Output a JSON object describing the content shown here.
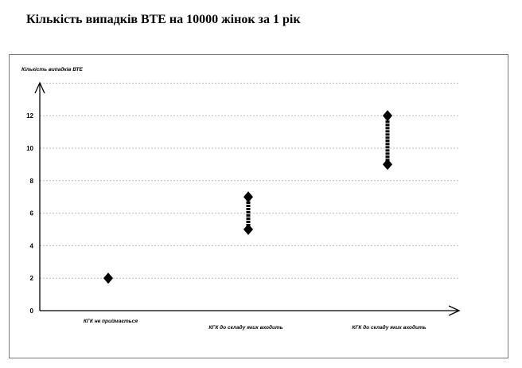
{
  "page_title": "Кількість випадків ВТЕ на 10000 жінок за 1 рік",
  "chart_data": {
    "type": "scatter",
    "title": "Кількість випадків ВТЕ на 10000 жінок за 1 рік",
    "ylabel": "Кількість випадків ВТЕ",
    "xlabel": "",
    "categories": [
      "КГК не приймається",
      "КГК до складу яких входить",
      "КГК до складу яких входить"
    ],
    "ranges": [
      {
        "low": 2,
        "high": 2
      },
      {
        "low": 5,
        "high": 7
      },
      {
        "low": 9,
        "high": 12
      }
    ],
    "yticks": [
      0,
      2,
      4,
      6,
      8,
      10,
      12
    ],
    "ylim": [
      0,
      14
    ],
    "grid": true,
    "legend": "none",
    "marker_color": "#000000",
    "grid_color": "#bdbdbd"
  }
}
